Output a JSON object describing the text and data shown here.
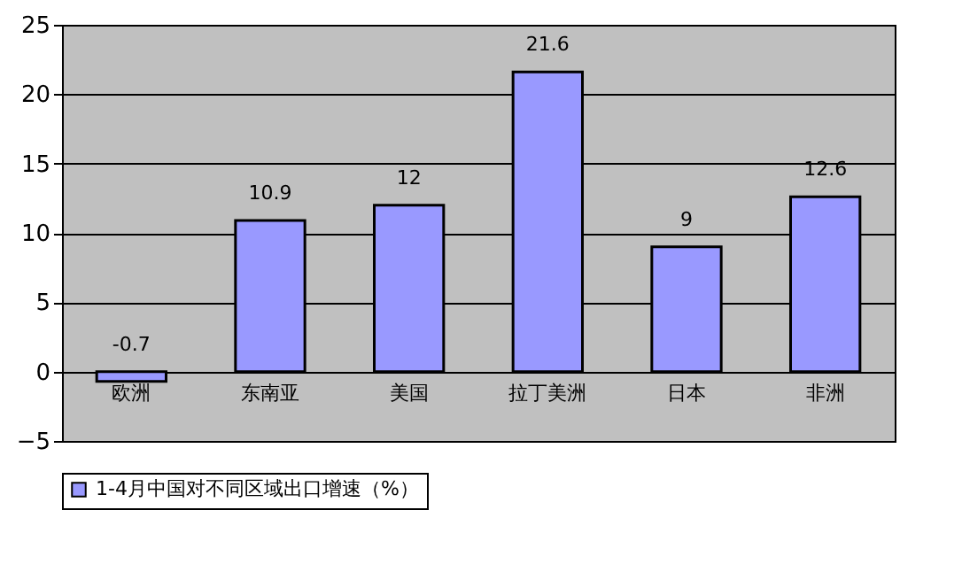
{
  "chart_data": {
    "type": "bar",
    "categories": [
      "欧洲",
      "东南亚",
      "美国",
      "拉丁美洲",
      "日本",
      "非洲"
    ],
    "series": [
      {
        "name": "1-4月中国对不同区域出口增速（%）",
        "color": "#9999ff",
        "values": [
          -0.7,
          10.9,
          12,
          21.6,
          9,
          12.6
        ]
      }
    ],
    "ylim": [
      -5,
      25
    ],
    "yticks": [
      -5,
      0,
      5,
      10,
      15,
      20,
      25
    ],
    "grid": "y",
    "legend": "bottom",
    "data_labels": true
  }
}
